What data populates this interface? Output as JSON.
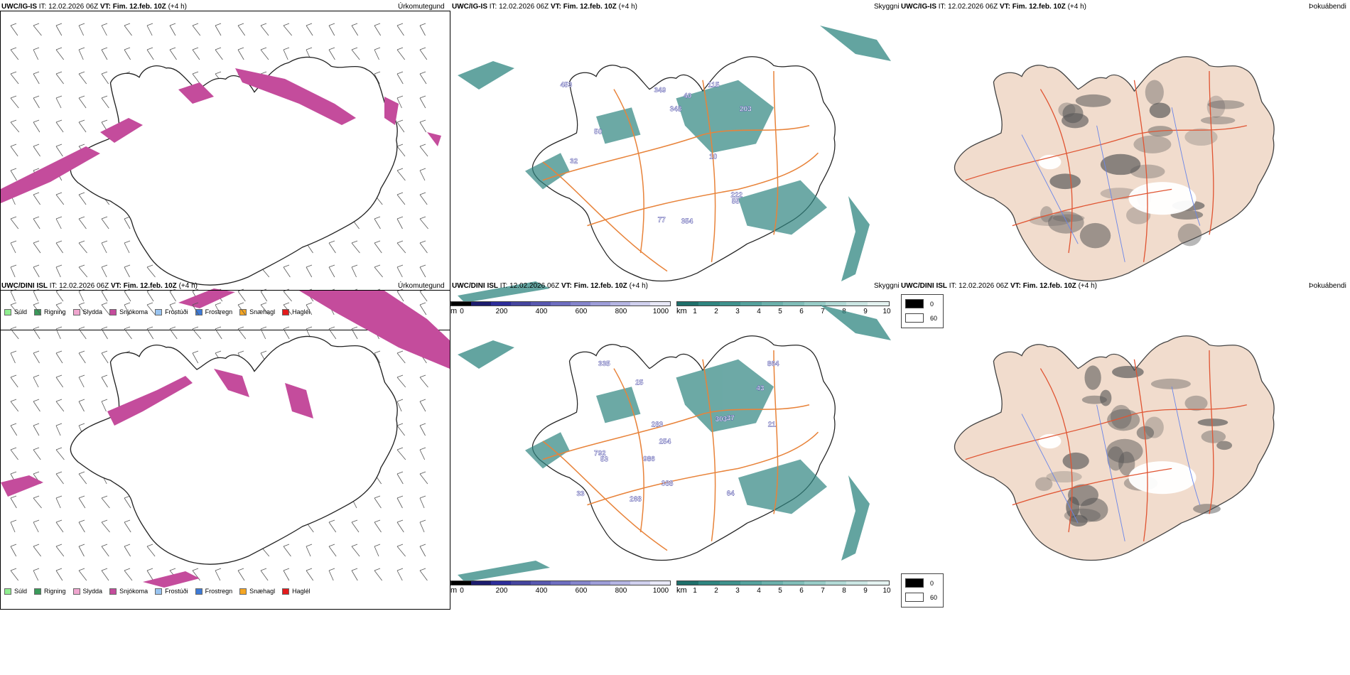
{
  "rows": [
    {
      "model": "UWC/IG-IS",
      "it_label": "IT:",
      "it_value": "12.02.2026 06Z",
      "vt_label": "VT:",
      "vt_value": "Fim. 12.feb. 10Z",
      "lead": "(+4 h)",
      "cloud_labels": [
        "348",
        "55",
        "453",
        "203",
        "77",
        "349",
        "354",
        "115",
        "50",
        "32",
        "222",
        "40",
        "10"
      ]
    },
    {
      "model": "UWC/DINI ISL",
      "it_label": "IT:",
      "it_value": "12.02.2026 06Z",
      "vt_label": "VT:",
      "vt_value": "Fim. 12.feb. 10Z",
      "lead": "(+4 h)",
      "cloud_labels": [
        "303",
        "64",
        "37",
        "254",
        "388",
        "25",
        "283",
        "792",
        "986",
        "21",
        "53",
        "335",
        "268",
        "43",
        "33",
        "864"
      ]
    }
  ],
  "panel_titles": {
    "precip": "Úrkomutegund",
    "cloud": "Skyggni",
    "fog": "Þokuábendi"
  },
  "precip_legend": [
    {
      "label": "Súld",
      "color": "#90ee90"
    },
    {
      "label": "Rigning",
      "color": "#3a9a5a"
    },
    {
      "label": "Slydda",
      "color": "#f0a6cf"
    },
    {
      "label": "Snjókoma",
      "color": "#c44c9c"
    },
    {
      "label": "Frostúði",
      "color": "#99c4f0"
    },
    {
      "label": "Frostregn",
      "color": "#3d7ad6"
    },
    {
      "label": "Snæhagl",
      "color": "#f5a623"
    },
    {
      "label": "Haglél",
      "color": "#e31a1c"
    }
  ],
  "cloudbase_scale": {
    "unit": "m",
    "ticks": [
      "0",
      "200",
      "400",
      "600",
      "800",
      "1000"
    ],
    "colors": [
      "#000000",
      "#1c1c6e",
      "#2d2d9a",
      "#45459e",
      "#5858b0",
      "#6e6ec0",
      "#8585cc",
      "#9d9dd8",
      "#b5b5e3",
      "#d0d0ee",
      "#e8e8f7"
    ]
  },
  "visibility_scale": {
    "unit": "km",
    "ticks": [
      "1",
      "2",
      "3",
      "4",
      "5",
      "6",
      "7",
      "8",
      "9",
      "10"
    ],
    "colors": [
      "#1f6f6a",
      "#2f8580",
      "#3f928d",
      "#55a29d",
      "#6bb0ab",
      "#80bdb8",
      "#98ccc7",
      "#b2dad6",
      "#cbe6e3",
      "#e4f2f0"
    ]
  },
  "fog_legend": [
    {
      "label": "0",
      "color": "#000000"
    },
    {
      "label": "60",
      "color": "#ffffff"
    }
  ],
  "colors": {
    "snow": "#c44c9c",
    "roads": "#e8833a",
    "cloudfill": "#2f8580",
    "land": "#f1dccd",
    "fogroad": "#e05533",
    "river": "#6b86e8"
  }
}
